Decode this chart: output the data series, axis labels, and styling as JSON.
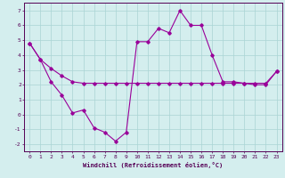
{
  "xlabel": "Windchill (Refroidissement éolien,°C)",
  "line_color": "#990099",
  "bg_color": "#d4eeee",
  "grid_color": "#aad4d4",
  "hours": [
    0,
    1,
    2,
    3,
    4,
    5,
    6,
    7,
    8,
    9,
    10,
    11,
    12,
    13,
    14,
    15,
    16,
    17,
    18,
    19,
    20,
    21,
    22,
    23
  ],
  "temp": [
    4.8,
    3.7,
    3.1,
    2.6,
    2.2,
    2.1,
    2.1,
    2.1,
    2.1,
    2.1,
    2.1,
    2.1,
    2.1,
    2.1,
    2.1,
    2.1,
    2.1,
    2.1,
    2.1,
    2.1,
    2.1,
    2.1,
    2.1,
    2.9
  ],
  "windchill": [
    4.8,
    3.7,
    2.2,
    1.3,
    0.1,
    0.3,
    -0.9,
    -1.2,
    -1.8,
    -1.2,
    4.9,
    4.9,
    5.8,
    5.5,
    7.0,
    6.0,
    6.0,
    4.0,
    2.2,
    2.2,
    2.1,
    2.0,
    2.0,
    2.9
  ],
  "ylim": [
    -2.5,
    7.5
  ],
  "xlim": [
    -0.5,
    23.5
  ],
  "yticks": [
    -2,
    -1,
    0,
    1,
    2,
    3,
    4,
    5,
    6,
    7
  ],
  "xticks": [
    0,
    1,
    2,
    3,
    4,
    5,
    6,
    7,
    8,
    9,
    10,
    11,
    12,
    13,
    14,
    15,
    16,
    17,
    18,
    19,
    20,
    21,
    22,
    23
  ],
  "tick_color": "#550055",
  "spine_color": "#550055"
}
